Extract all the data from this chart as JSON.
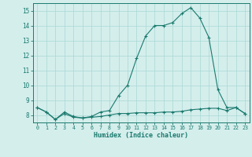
{
  "line1_x": [
    0,
    1,
    2,
    3,
    4,
    5,
    6,
    7,
    8,
    9,
    10,
    11,
    12,
    13,
    14,
    15,
    16,
    17,
    18,
    19,
    20,
    21,
    22,
    23
  ],
  "line1_y": [
    8.5,
    8.2,
    7.7,
    8.2,
    7.9,
    7.8,
    7.9,
    8.2,
    8.3,
    9.3,
    10.0,
    11.8,
    13.3,
    14.0,
    14.0,
    14.2,
    14.8,
    15.2,
    14.5,
    13.2,
    9.7,
    8.5,
    8.5,
    8.1
  ],
  "line2_x": [
    0,
    1,
    2,
    3,
    4,
    5,
    6,
    7,
    8,
    9,
    10,
    11,
    12,
    13,
    14,
    15,
    16,
    17,
    18,
    19,
    20,
    21,
    22,
    23
  ],
  "line2_y": [
    8.5,
    8.2,
    7.7,
    8.1,
    7.85,
    7.8,
    7.85,
    7.9,
    8.0,
    8.1,
    8.1,
    8.15,
    8.15,
    8.15,
    8.2,
    8.2,
    8.25,
    8.35,
    8.4,
    8.45,
    8.45,
    8.3,
    8.5,
    8.1
  ],
  "line_color": "#1a7a6e",
  "bg_color": "#d4eeec",
  "grid_color": "#a8d8d4",
  "xlabel": "Humidex (Indice chaleur)",
  "xlim": [
    -0.5,
    23.5
  ],
  "ylim": [
    7.5,
    15.5
  ],
  "yticks": [
    8,
    9,
    10,
    11,
    12,
    13,
    14,
    15
  ],
  "xticks": [
    0,
    1,
    2,
    3,
    4,
    5,
    6,
    7,
    8,
    9,
    10,
    11,
    12,
    13,
    14,
    15,
    16,
    17,
    18,
    19,
    20,
    21,
    22,
    23
  ],
  "xtick_labels": [
    "0",
    "1",
    "2",
    "3",
    "4",
    "5",
    "6",
    "7",
    "8",
    "9",
    "10",
    "11",
    "12",
    "13",
    "14",
    "15",
    "16",
    "17",
    "18",
    "19",
    "20",
    "21",
    "22",
    "23"
  ]
}
